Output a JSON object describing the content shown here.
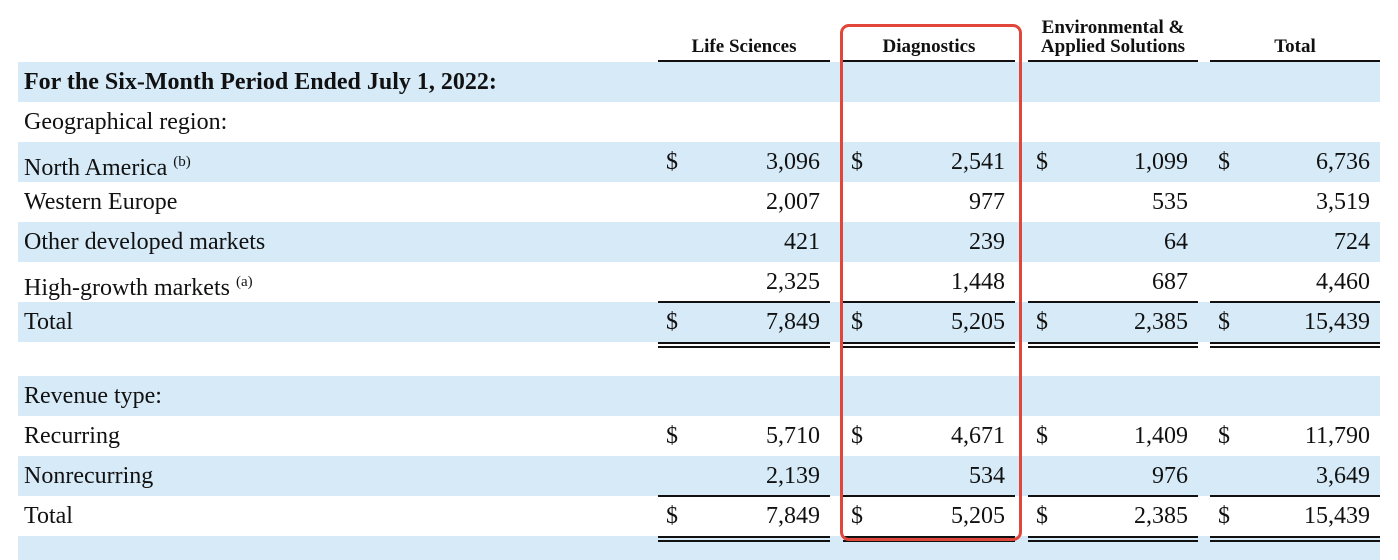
{
  "header": {
    "columns": [
      "Life Sciences",
      "Diagnostics",
      "Environmental & Applied Solutions",
      "Total"
    ]
  },
  "sections": [
    {
      "title": "For the Six-Month Period Ended July 1, 2022:",
      "subtitle": "Geographical region:",
      "rows": [
        {
          "label": "North America",
          "note": "(b)",
          "cells": [
            [
              "$",
              "3,096"
            ],
            [
              "$",
              "2,541"
            ],
            [
              "$",
              "1,099"
            ],
            [
              "$",
              "6,736"
            ]
          ]
        },
        {
          "label": "Western Europe",
          "cells": [
            "2,007",
            "977",
            "535",
            "3,519"
          ]
        },
        {
          "label": "Other developed markets",
          "cells": [
            "421",
            "239",
            "64",
            "724"
          ]
        },
        {
          "label": "High-growth markets",
          "note": "(a)",
          "cells": [
            "2,325",
            "1,448",
            "687",
            "4,460"
          ]
        },
        {
          "label": "Total",
          "cells": [
            [
              "$",
              "7,849"
            ],
            [
              "$",
              "5,205"
            ],
            [
              "$",
              "2,385"
            ],
            [
              "$",
              "15,439"
            ]
          ]
        }
      ]
    },
    {
      "subtitle": "Revenue type:",
      "rows": [
        {
          "label": "Recurring",
          "cells": [
            [
              "$",
              "5,710"
            ],
            [
              "$",
              "4,671"
            ],
            [
              "$",
              "1,409"
            ],
            [
              "$",
              "11,790"
            ]
          ]
        },
        {
          "label": "Nonrecurring",
          "cells": [
            "2,139",
            "534",
            "976",
            "3,649"
          ]
        },
        {
          "label": "Total",
          "cells": [
            [
              "$",
              "7,849"
            ],
            [
              "$",
              "5,205"
            ],
            [
              "$",
              "2,385"
            ],
            [
              "$",
              "15,439"
            ]
          ]
        }
      ]
    }
  ]
}
